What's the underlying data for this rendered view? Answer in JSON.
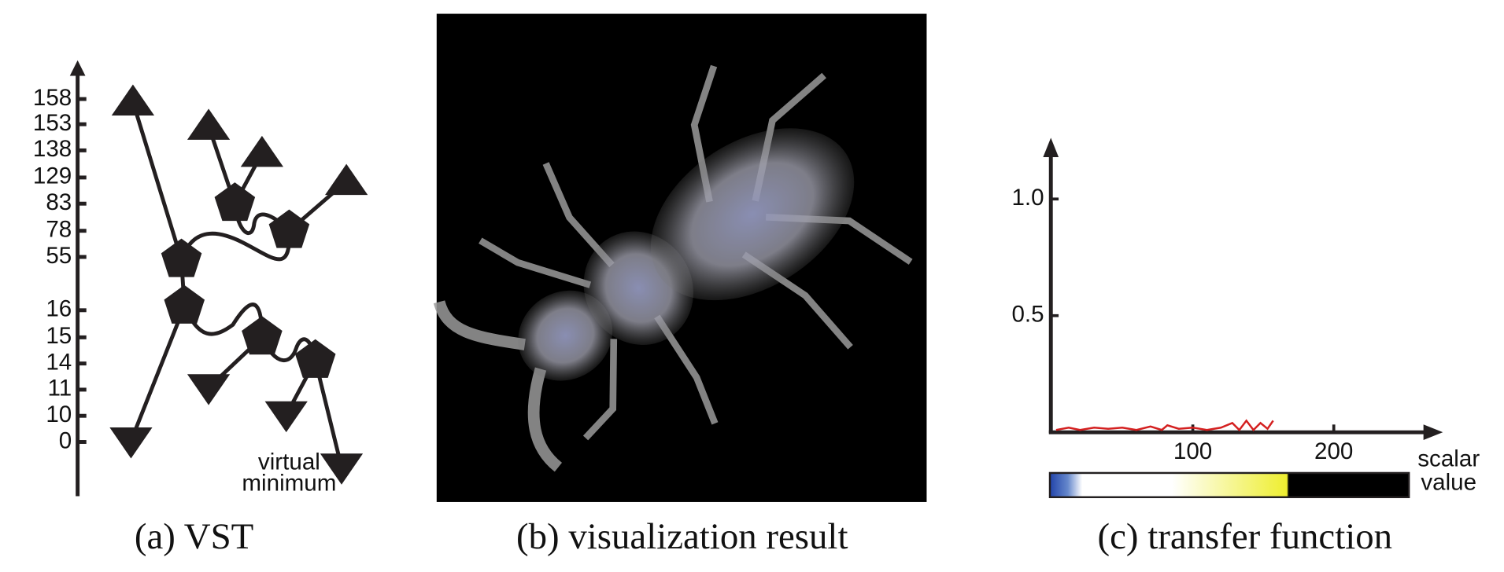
{
  "captions": [
    "(a) VST",
    "(b) visualization result",
    "(c) transfer function"
  ],
  "vst": {
    "axis_labels": [
      158,
      153,
      138,
      129,
      83,
      78,
      55,
      16,
      15,
      14,
      11,
      10,
      0
    ],
    "annotation_lines": [
      "virtual",
      "minimum"
    ]
  },
  "chart_data": {
    "type": "line",
    "xlabel_lines": [
      "scalar",
      "value"
    ],
    "x": [
      3,
      12,
      20,
      30,
      40,
      50,
      60,
      70,
      78,
      82,
      90,
      100,
      110,
      120,
      128,
      133,
      138,
      143,
      148,
      153,
      157
    ],
    "values": [
      0.01,
      0.02,
      0.01,
      0.02,
      0.015,
      0.02,
      0.01,
      0.025,
      0.01,
      0.03,
      0.015,
      0.02,
      0.01,
      0.02,
      0.04,
      0.01,
      0.05,
      0.01,
      0.04,
      0.015,
      0.05
    ],
    "color": "#d42020",
    "xlim": [
      0,
      276
    ],
    "ylim": [
      0,
      1.25
    ],
    "xticks": [
      100,
      200
    ],
    "yticks": [
      0.5,
      {
        "value": 1,
        "label": "1.0"
      }
    ]
  }
}
